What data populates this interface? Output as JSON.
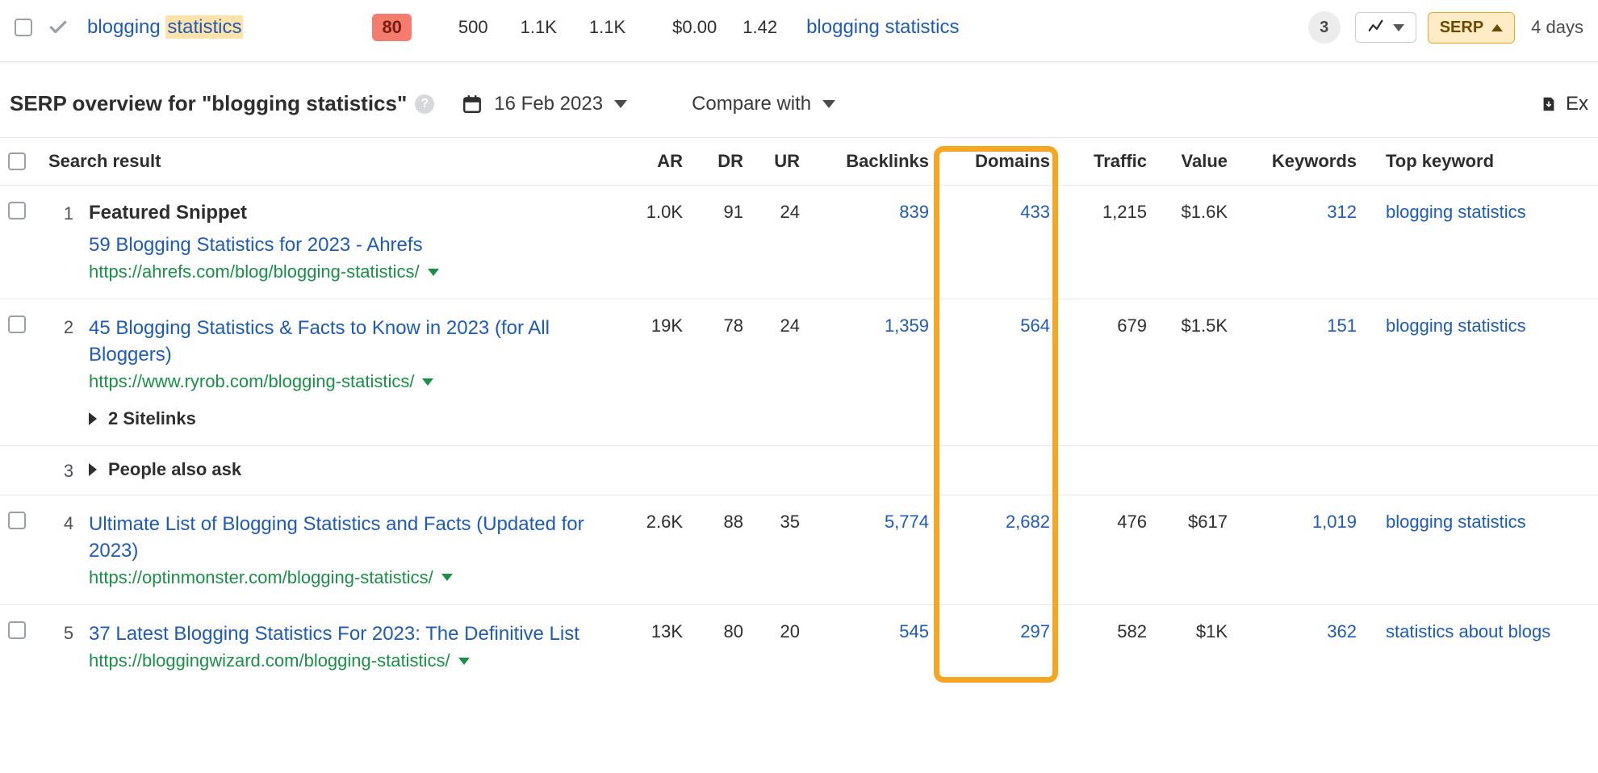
{
  "keyword_row": {
    "keyword_main": "blogging",
    "keyword_highlight": "statistics",
    "kd": "80",
    "volume": "500",
    "gv": "1.1K",
    "tp": "1.1K",
    "cpc": "$0.00",
    "clicks": "1.42",
    "parent_topic": "blogging statistics",
    "results_badge": "3",
    "serp_label": "SERP",
    "updated": "4 days"
  },
  "overview": {
    "title": "SERP overview for \"blogging statistics\"",
    "date": "16 Feb 2023",
    "compare_label": "Compare with",
    "export_label": "Ex"
  },
  "columns": {
    "search_result": "Search result",
    "ar": "AR",
    "dr": "DR",
    "ur": "UR",
    "backlinks": "Backlinks",
    "domains": "Domains",
    "traffic": "Traffic",
    "value": "Value",
    "keywords": "Keywords",
    "top_keyword": "Top keyword"
  },
  "rows": [
    {
      "idx": "1",
      "checkbox": true,
      "featured_label": "Featured Snippet",
      "title": "59 Blogging Statistics for 2023 - Ahrefs",
      "url": "https://ahrefs.com/blog/blogging-statistics/",
      "ar": "1.0K",
      "dr": "91",
      "ur": "24",
      "backlinks": "839",
      "domains": "433",
      "traffic": "1,215",
      "value": "$1.6K",
      "keywords": "312",
      "top_keyword": "blogging statistics"
    },
    {
      "idx": "2",
      "checkbox": true,
      "title": "45 Blogging Statistics & Facts to Know in 2023 (for All Bloggers)",
      "url": "https://www.ryrob.com/blogging-statistics/",
      "sitelinks_label": "2 Sitelinks",
      "ar": "19K",
      "dr": "78",
      "ur": "24",
      "backlinks": "1,359",
      "domains": "564",
      "traffic": "679",
      "value": "$1.5K",
      "keywords": "151",
      "top_keyword": "blogging statistics"
    },
    {
      "idx": "3",
      "checkbox": false,
      "paa_label": "People also ask"
    },
    {
      "idx": "4",
      "checkbox": true,
      "title": "Ultimate List of Blogging Statistics and Facts (Updated for 2023)",
      "url": "https://optinmonster.com/blogging-statistics/",
      "ar": "2.6K",
      "dr": "88",
      "ur": "35",
      "backlinks": "5,774",
      "domains": "2,682",
      "traffic": "476",
      "value": "$617",
      "keywords": "1,019",
      "top_keyword": "blogging statistics"
    },
    {
      "idx": "5",
      "checkbox": true,
      "title": "37 Latest Blogging Statistics For 2023: The Definitive List",
      "url": "https://bloggingwizard.com/blogging-statistics/",
      "ar": "13K",
      "dr": "80",
      "ur": "20",
      "backlinks": "545",
      "domains": "297",
      "traffic": "582",
      "value": "$1K",
      "keywords": "362",
      "top_keyword": "statistics about blogs"
    }
  ],
  "highlight": {
    "column": "domains"
  }
}
